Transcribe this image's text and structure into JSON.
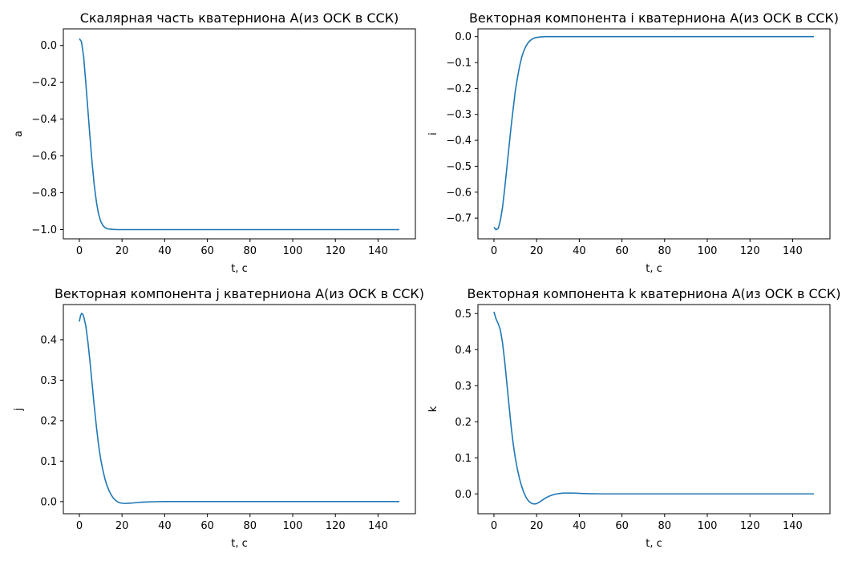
{
  "chart_data": [
    {
      "type": "line",
      "title": "Скалярная часть кватерниона A(из ОСК в ССК)",
      "xlabel": "t, c",
      "ylabel": "a",
      "xlim": [
        -7.5,
        157.5
      ],
      "ylim": [
        -1.05,
        0.09
      ],
      "xticks": [
        0,
        20,
        40,
        60,
        80,
        100,
        120,
        140
      ],
      "yticks": [
        0.0,
        -0.2,
        -0.4,
        -0.6,
        -0.8,
        -1.0
      ],
      "ytick_labels": [
        "0.0",
        "−0.2",
        "−0.4",
        "−0.6",
        "−0.8",
        "−1.0"
      ],
      "grid": false,
      "color": "#1f77b4",
      "series": [
        {
          "x": [
            0,
            1,
            2,
            3,
            4,
            5,
            6,
            7,
            8,
            9,
            10,
            11,
            12,
            13,
            14,
            15,
            16,
            18,
            20,
            25,
            30,
            40,
            60,
            80,
            100,
            120,
            140,
            150
          ],
          "y": [
            0.037,
            0.02,
            -0.06,
            -0.2,
            -0.35,
            -0.5,
            -0.64,
            -0.76,
            -0.85,
            -0.915,
            -0.955,
            -0.977,
            -0.989,
            -0.995,
            -0.997,
            -0.998,
            -0.999,
            -1.0,
            -1.0,
            -1.0,
            -1.0,
            -1.0,
            -1.0,
            -1.0,
            -1.0,
            -1.0,
            -1.0,
            -1.0
          ]
        }
      ]
    },
    {
      "type": "line",
      "title": "Векторная компонента i кватерниона A(из ОСК в ССК)",
      "xlabel": "t, c",
      "ylabel": "i",
      "xlim": [
        -7.5,
        157.5
      ],
      "ylim": [
        -0.78,
        0.03
      ],
      "xticks": [
        0,
        20,
        40,
        60,
        80,
        100,
        120,
        140
      ],
      "yticks": [
        0.0,
        -0.1,
        -0.2,
        -0.3,
        -0.4,
        -0.5,
        -0.6,
        -0.7
      ],
      "ytick_labels": [
        "0.0",
        "−0.1",
        "−0.2",
        "−0.3",
        "−0.4",
        "−0.5",
        "−0.6",
        "−0.7"
      ],
      "grid": false,
      "color": "#1f77b4",
      "series": [
        {
          "x": [
            0,
            1,
            2,
            3,
            4,
            5,
            6,
            7,
            8,
            9,
            10,
            11,
            12,
            13,
            14,
            15,
            16,
            17,
            18,
            19,
            20,
            22,
            24,
            26,
            30,
            35,
            40,
            60,
            80,
            100,
            120,
            140,
            150
          ],
          "y": [
            -0.735,
            -0.745,
            -0.74,
            -0.71,
            -0.66,
            -0.59,
            -0.51,
            -0.43,
            -0.35,
            -0.28,
            -0.21,
            -0.16,
            -0.115,
            -0.08,
            -0.055,
            -0.037,
            -0.024,
            -0.015,
            -0.009,
            -0.005,
            -0.003,
            -0.001,
            0.0,
            0.0,
            0.0,
            0.0,
            0.0,
            0.0,
            0.0,
            0.0,
            0.0,
            0.0,
            0.0
          ]
        }
      ]
    },
    {
      "type": "line",
      "title": "Векторная компонента j кватерниона A(из ОСК в ССК)",
      "xlabel": "t, c",
      "ylabel": "j",
      "xlim": [
        -7.5,
        157.5
      ],
      "ylim": [
        -0.03,
        0.487
      ],
      "xticks": [
        0,
        20,
        40,
        60,
        80,
        100,
        120,
        140
      ],
      "yticks": [
        0.0,
        0.1,
        0.2,
        0.3,
        0.4
      ],
      "ytick_labels": [
        "0.0",
        "0.1",
        "0.2",
        "0.3",
        "0.4"
      ],
      "grid": false,
      "color": "#1f77b4",
      "series": [
        {
          "x": [
            0,
            0.5,
            1,
            1.5,
            2,
            3,
            4,
            5,
            6,
            7,
            8,
            9,
            10,
            11,
            12,
            13,
            14,
            15,
            16,
            17,
            18,
            19,
            20,
            21,
            22,
            23,
            25,
            28,
            32,
            36,
            40,
            60,
            80,
            100,
            120,
            140,
            150
          ],
          "y": [
            0.445,
            0.458,
            0.465,
            0.464,
            0.458,
            0.435,
            0.395,
            0.345,
            0.29,
            0.235,
            0.185,
            0.14,
            0.105,
            0.078,
            0.056,
            0.039,
            0.026,
            0.016,
            0.008,
            0.003,
            -0.001,
            -0.003,
            -0.004,
            -0.0045,
            -0.0045,
            -0.0042,
            -0.0035,
            -0.002,
            -0.001,
            -0.0003,
            0.0,
            0.0,
            0.0,
            0.0,
            0.0,
            0.0,
            0.0
          ]
        }
      ]
    },
    {
      "type": "line",
      "title": "Векторная компонента k кватерниона A(из ОСК в ССК)",
      "xlabel": "t, c",
      "ylabel": "k",
      "xlim": [
        -7.5,
        157.5
      ],
      "ylim": [
        -0.055,
        0.525
      ],
      "xticks": [
        0,
        20,
        40,
        60,
        80,
        100,
        120,
        140
      ],
      "yticks": [
        0.0,
        0.1,
        0.2,
        0.3,
        0.4,
        0.5
      ],
      "ytick_labels": [
        "0.0",
        "0.1",
        "0.2",
        "0.3",
        "0.4",
        "0.5"
      ],
      "grid": false,
      "color": "#1f77b4",
      "series": [
        {
          "x": [
            0,
            0.5,
            1,
            2,
            3,
            4,
            5,
            6,
            7,
            8,
            9,
            10,
            11,
            12,
            13,
            14,
            15,
            16,
            17,
            18,
            19,
            20,
            21,
            22,
            23,
            24,
            26,
            28,
            30,
            32,
            35,
            38,
            42,
            46,
            50,
            60,
            80,
            100,
            120,
            140,
            150
          ],
          "y": [
            0.505,
            0.495,
            0.485,
            0.472,
            0.455,
            0.42,
            0.37,
            0.31,
            0.25,
            0.19,
            0.14,
            0.1,
            0.068,
            0.042,
            0.021,
            0.004,
            -0.009,
            -0.018,
            -0.024,
            -0.027,
            -0.028,
            -0.027,
            -0.024,
            -0.02,
            -0.016,
            -0.012,
            -0.006,
            -0.002,
            0.0005,
            0.002,
            0.0025,
            0.002,
            0.001,
            0.0005,
            0.0,
            0.0,
            0.0,
            0.0,
            0.0,
            0.0,
            0.0
          ]
        }
      ]
    }
  ]
}
